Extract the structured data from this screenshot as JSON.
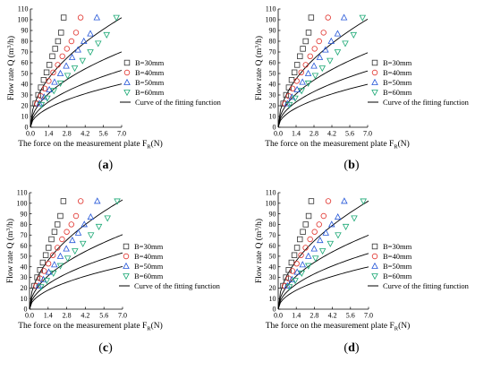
{
  "figure": {
    "x_label": "The force on the measurement plate F",
    "x_label_sub": "R",
    "x_label_unit": "(N)",
    "y_label_main": "Flow rate Q (m",
    "y_label_sup": "3",
    "y_label_end": "/h)",
    "panels": [
      {
        "label_open": "(",
        "label_letter": "a",
        "label_close": ")"
      },
      {
        "label_open": "(",
        "label_letter": "b",
        "label_close": ")"
      },
      {
        "label_open": "(",
        "label_letter": "c",
        "label_close": ")"
      },
      {
        "label_open": "(",
        "label_letter": "d",
        "label_close": ")"
      }
    ],
    "legend": [
      {
        "name": "B=30mm",
        "marker": "square",
        "color": "#333333"
      },
      {
        "name": "B=40mm",
        "marker": "circle",
        "color": "#e0322c"
      },
      {
        "name": "B=50mm",
        "marker": "triangle-up",
        "color": "#2456d8"
      },
      {
        "name": "B=60mm",
        "marker": "triangle-down",
        "color": "#1aa874"
      },
      {
        "name": "Curve of the fitting  function",
        "marker": "line",
        "color": "#000000"
      }
    ]
  },
  "chart_data": [
    {
      "type": "scatter",
      "title": "(a)",
      "xlabel": "The force on the measurement plate FR(N)",
      "ylabel": "Flow rate Q (m3/h)",
      "xlim": [
        0.0,
        7.0
      ],
      "ylim": [
        0,
        110
      ],
      "xticks": [
        "0.0",
        "1.4",
        "2.8",
        "4.2",
        "5.6",
        "7.0"
      ],
      "yticks": [
        "0",
        "10",
        "20",
        "30",
        "40",
        "50",
        "60",
        "70",
        "80",
        "90",
        "100",
        "110"
      ],
      "legend_position": "right",
      "series": [
        {
          "name": "B=30mm",
          "marker": "square",
          "x": [
            0.38,
            0.6,
            0.8,
            1.02,
            1.24,
            1.45,
            1.68,
            1.9,
            2.12,
            2.35,
            2.55
          ],
          "y": [
            22,
            30,
            37,
            44,
            51,
            58,
            66,
            73,
            80,
            88,
            102
          ],
          "fit_k": 38.5
        },
        {
          "name": "B=40mm",
          "marker": "circle",
          "x": [
            0.5,
            0.8,
            1.1,
            1.4,
            1.75,
            2.1,
            2.45,
            2.8,
            3.15,
            3.5,
            3.85
          ],
          "y": [
            22,
            29,
            36,
            43,
            51,
            58,
            66,
            73,
            80,
            88,
            102
          ],
          "fit_k": 26.5
        },
        {
          "name": "B=50mm",
          "marker": "triangle-up",
          "x": [
            0.7,
            1.05,
            1.45,
            1.85,
            2.3,
            2.75,
            3.2,
            3.65,
            4.1,
            4.6,
            5.1
          ],
          "y": [
            22,
            28,
            35,
            42,
            50,
            57,
            65,
            72,
            80,
            87,
            102
          ],
          "fit_k": 20.0
        },
        {
          "name": "B=60mm",
          "marker": "triangle-down",
          "x": [
            0.85,
            1.3,
            1.8,
            2.3,
            2.85,
            3.4,
            4.0,
            4.6,
            5.2,
            5.85,
            6.6
          ],
          "y": [
            21,
            27,
            34,
            41,
            48,
            55,
            62,
            70,
            78,
            86,
            102
          ],
          "fit_k": 15.2
        }
      ]
    },
    {
      "type": "scatter",
      "title": "(b)",
      "xlabel": "The force on the measurement plate FR(N)",
      "ylabel": "Flow rate Q (m3/h)",
      "xlim": [
        0.0,
        7.0
      ],
      "ylim": [
        0,
        110
      ],
      "xticks": [
        "0.0",
        "1.4",
        "2.8",
        "4.2",
        "5.6",
        "7.0"
      ],
      "yticks": [
        "0",
        "10",
        "20",
        "30",
        "40",
        "50",
        "60",
        "70",
        "80",
        "90",
        "100",
        "110"
      ],
      "legend_position": "right",
      "series": [
        {
          "name": "B=30mm",
          "marker": "square",
          "x": [
            0.4,
            0.62,
            0.83,
            1.05,
            1.27,
            1.48,
            1.7,
            1.93,
            2.15,
            2.38,
            2.58
          ],
          "y": [
            22,
            30,
            37,
            44,
            51,
            58,
            66,
            73,
            80,
            88,
            102
          ],
          "fit_k": 38.0
        },
        {
          "name": "B=40mm",
          "marker": "circle",
          "x": [
            0.52,
            0.83,
            1.13,
            1.45,
            1.8,
            2.15,
            2.5,
            2.85,
            3.2,
            3.55,
            3.9
          ],
          "y": [
            22,
            29,
            36,
            43,
            51,
            58,
            66,
            73,
            80,
            88,
            102
          ],
          "fit_k": 26.2
        },
        {
          "name": "B=50mm",
          "marker": "triangle-up",
          "x": [
            0.72,
            1.08,
            1.48,
            1.9,
            2.35,
            2.8,
            3.25,
            3.7,
            4.15,
            4.65,
            5.15
          ],
          "y": [
            22,
            28,
            35,
            42,
            50,
            57,
            65,
            72,
            80,
            87,
            102
          ],
          "fit_k": 19.8
        },
        {
          "name": "B=60mm",
          "marker": "triangle-down",
          "x": [
            0.88,
            1.33,
            1.83,
            2.35,
            2.9,
            3.45,
            4.05,
            4.65,
            5.25,
            5.9,
            6.6
          ],
          "y": [
            21,
            27,
            34,
            41,
            48,
            55,
            62,
            70,
            78,
            86,
            102
          ],
          "fit_k": 15.1
        }
      ]
    },
    {
      "type": "scatter",
      "title": "(c)",
      "xlabel": "The force on the measurement plate FR(N)",
      "ylabel": "Flow rate Q (m3/h)",
      "xlim": [
        0.0,
        7.0
      ],
      "ylim": [
        0,
        110
      ],
      "xticks": [
        "0.0",
        "1.4",
        "2.8",
        "4.2",
        "5.6",
        "7.0"
      ],
      "yticks": [
        "0",
        "10",
        "20",
        "30",
        "40",
        "50",
        "60",
        "70",
        "80",
        "90",
        "100",
        "110"
      ],
      "legend_position": "right",
      "series": [
        {
          "name": "B=30mm",
          "marker": "square",
          "x": [
            0.36,
            0.58,
            0.79,
            1.0,
            1.22,
            1.43,
            1.65,
            1.88,
            2.1,
            2.32,
            2.55
          ],
          "y": [
            22,
            30,
            37,
            44,
            51,
            58,
            66,
            73,
            80,
            88,
            102
          ],
          "fit_k": 39.0
        },
        {
          "name": "B=40mm",
          "marker": "circle",
          "x": [
            0.5,
            0.8,
            1.1,
            1.42,
            1.76,
            2.1,
            2.45,
            2.8,
            3.15,
            3.5,
            3.85
          ],
          "y": [
            22,
            29,
            36,
            43,
            51,
            58,
            66,
            73,
            80,
            88,
            102
          ],
          "fit_k": 26.6
        },
        {
          "name": "B=50mm",
          "marker": "triangle-up",
          "x": [
            0.7,
            1.05,
            1.45,
            1.87,
            2.32,
            2.77,
            3.22,
            3.67,
            4.12,
            4.6,
            5.1
          ],
          "y": [
            22,
            28,
            35,
            42,
            50,
            57,
            65,
            72,
            80,
            87,
            102
          ],
          "fit_k": 20.1
        },
        {
          "name": "B=60mm",
          "marker": "triangle-down",
          "x": [
            0.86,
            1.3,
            1.8,
            2.32,
            2.87,
            3.42,
            4.02,
            4.62,
            5.22,
            5.87,
            6.6
          ],
          "y": [
            21,
            27,
            34,
            41,
            48,
            55,
            62,
            70,
            78,
            86,
            102
          ],
          "fit_k": 15.2
        }
      ]
    },
    {
      "type": "scatter",
      "title": "(d)",
      "xlabel": "The force on the measurement plate FR(N)",
      "ylabel": "Flow rate Q (m3/h)",
      "xlim": [
        0.0,
        7.0
      ],
      "ylim": [
        0,
        110
      ],
      "xticks": [
        "0.0",
        "1.4",
        "2.8",
        "4.2",
        "5.6",
        "7.0"
      ],
      "yticks": [
        "0",
        "10",
        "20",
        "30",
        "40",
        "50",
        "60",
        "70",
        "80",
        "90",
        "100",
        "110"
      ],
      "legend_position": "right",
      "series": [
        {
          "name": "B=30mm",
          "marker": "square",
          "x": [
            0.38,
            0.6,
            0.81,
            1.03,
            1.25,
            1.46,
            1.68,
            1.91,
            2.13,
            2.36,
            2.56
          ],
          "y": [
            22,
            30,
            37,
            44,
            51,
            58,
            66,
            73,
            80,
            88,
            102
          ],
          "fit_k": 38.6
        },
        {
          "name": "B=40mm",
          "marker": "circle",
          "x": [
            0.5,
            0.81,
            1.11,
            1.43,
            1.77,
            2.12,
            2.47,
            2.82,
            3.17,
            3.52,
            3.88
          ],
          "y": [
            22,
            29,
            36,
            43,
            51,
            58,
            66,
            73,
            80,
            88,
            102
          ],
          "fit_k": 26.4
        },
        {
          "name": "B=50mm",
          "marker": "triangle-up",
          "x": [
            0.71,
            1.07,
            1.47,
            1.89,
            2.34,
            2.79,
            3.24,
            3.69,
            4.14,
            4.62,
            5.12
          ],
          "y": [
            22,
            28,
            35,
            42,
            50,
            57,
            65,
            72,
            80,
            87,
            102
          ],
          "fit_k": 19.9
        },
        {
          "name": "B=60mm",
          "marker": "triangle-down",
          "x": [
            0.87,
            1.32,
            1.82,
            2.34,
            2.89,
            3.44,
            4.04,
            4.64,
            5.24,
            5.89,
            6.6
          ],
          "y": [
            21,
            27,
            34,
            41,
            48,
            55,
            62,
            70,
            78,
            86,
            102
          ],
          "fit_k": 15.1
        }
      ]
    }
  ]
}
